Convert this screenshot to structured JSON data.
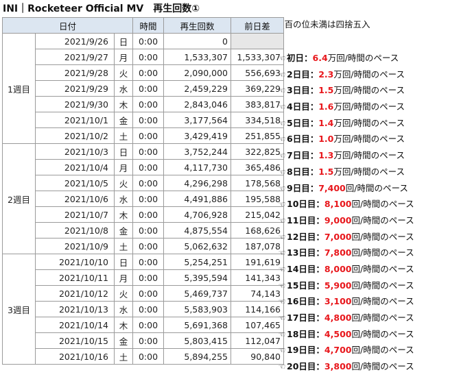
{
  "title": "INI｜Rocketeer Official MV　再生回数①",
  "note": "※百の位未満は四捨五入",
  "headers": {
    "date": "日付",
    "time": "時間",
    "views": "再生回数",
    "diff": "前日差"
  },
  "weeks": [
    {
      "label": "1週目",
      "rows": [
        {
          "date": "2021/9/26",
          "day": "日",
          "time": "0:00",
          "views": "0",
          "diff": ""
        },
        {
          "date": "2021/9/27",
          "day": "月",
          "time": "0:00",
          "views": "1,533,307",
          "diff": "1,533,307"
        },
        {
          "date": "2021/9/28",
          "day": "火",
          "time": "0:00",
          "views": "2,090,000",
          "diff": "556,693"
        },
        {
          "date": "2021/9/29",
          "day": "水",
          "time": "0:00",
          "views": "2,459,229",
          "diff": "369,229"
        },
        {
          "date": "2021/9/30",
          "day": "木",
          "time": "0:00",
          "views": "2,843,046",
          "diff": "383,817"
        },
        {
          "date": "2021/10/1",
          "day": "金",
          "time": "0:00",
          "views": "3,177,564",
          "diff": "334,518"
        },
        {
          "date": "2021/10/2",
          "day": "土",
          "time": "0:00",
          "views": "3,429,419",
          "diff": "251,855"
        }
      ]
    },
    {
      "label": "2週目",
      "rows": [
        {
          "date": "2021/10/3",
          "day": "日",
          "time": "0:00",
          "views": "3,752,244",
          "diff": "322,825"
        },
        {
          "date": "2021/10/4",
          "day": "月",
          "time": "0:00",
          "views": "4,117,730",
          "diff": "365,486"
        },
        {
          "date": "2021/10/5",
          "day": "火",
          "time": "0:00",
          "views": "4,296,298",
          "diff": "178,568"
        },
        {
          "date": "2021/10/6",
          "day": "水",
          "time": "0:00",
          "views": "4,491,886",
          "diff": "195,588"
        },
        {
          "date": "2021/10/7",
          "day": "木",
          "time": "0:00",
          "views": "4,706,928",
          "diff": "215,042"
        },
        {
          "date": "2021/10/8",
          "day": "金",
          "time": "0:00",
          "views": "4,875,554",
          "diff": "168,626"
        },
        {
          "date": "2021/10/9",
          "day": "土",
          "time": "0:00",
          "views": "5,062,632",
          "diff": "187,078"
        }
      ]
    },
    {
      "label": "3週目",
      "rows": [
        {
          "date": "2021/10/10",
          "day": "日",
          "time": "0:00",
          "views": "5,254,251",
          "diff": "191,619"
        },
        {
          "date": "2021/10/11",
          "day": "月",
          "time": "0:00",
          "views": "5,395,594",
          "diff": "141,343"
        },
        {
          "date": "2021/10/12",
          "day": "火",
          "time": "0:00",
          "views": "5,469,737",
          "diff": "74,143"
        },
        {
          "date": "2021/10/13",
          "day": "水",
          "time": "0:00",
          "views": "5,583,903",
          "diff": "114,166"
        },
        {
          "date": "2021/10/14",
          "day": "木",
          "time": "0:00",
          "views": "5,691,368",
          "diff": "107,465"
        },
        {
          "date": "2021/10/15",
          "day": "金",
          "time": "0:00",
          "views": "5,803,415",
          "diff": "112,047"
        },
        {
          "date": "2021/10/16",
          "day": "土",
          "time": "0:00",
          "views": "5,894,255",
          "diff": "90,840"
        }
      ]
    }
  ],
  "pace_notes": [
    {
      "day_label": "初日",
      "rate": "6.4",
      "unit": "万回",
      "suffix": "/時間のペース"
    },
    {
      "day_label": "2日目",
      "rate": "2.3",
      "unit": "万回",
      "suffix": "/時間のペース"
    },
    {
      "day_label": "3日目",
      "rate": "1.5",
      "unit": "万回",
      "suffix": "/時間のペース"
    },
    {
      "day_label": "4日目",
      "rate": "1.6",
      "unit": "万回",
      "suffix": "/時間のペース"
    },
    {
      "day_label": "5日目",
      "rate": "1.4",
      "unit": "万回",
      "suffix": "/時間のペース"
    },
    {
      "day_label": "6日目",
      "rate": "1.0",
      "unit": "万回",
      "suffix": "/時間のペース"
    },
    {
      "day_label": "7日目",
      "rate": "1.3",
      "unit": "万回",
      "suffix": "/時間のペース"
    },
    {
      "day_label": "8日目",
      "rate": "1.5",
      "unit": "万回",
      "suffix": "/時間のペース"
    },
    {
      "day_label": "9日目",
      "rate": "7,400",
      "unit": "回",
      "suffix": "/時間のペース"
    },
    {
      "day_label": "10日目",
      "rate": "8,100",
      "unit": "回",
      "suffix": "/時間のペース"
    },
    {
      "day_label": "11日目",
      "rate": "9,000",
      "unit": "回",
      "suffix": "/時間のペース"
    },
    {
      "day_label": "12日目",
      "rate": "7,000",
      "unit": "回",
      "suffix": "/時間のペース"
    },
    {
      "day_label": "13日目",
      "rate": "7,800",
      "unit": "回",
      "suffix": "/時間のペース"
    },
    {
      "day_label": "14日目",
      "rate": "8,000",
      "unit": "回",
      "suffix": "/時間のペース"
    },
    {
      "day_label": "15日目",
      "rate": "5,900",
      "unit": "回",
      "suffix": "/時間のペース"
    },
    {
      "day_label": "16日目",
      "rate": "3,100",
      "unit": "回",
      "suffix": "/時間のペース"
    },
    {
      "day_label": "17日目",
      "rate": "4,800",
      "unit": "回",
      "suffix": "/時間のペース"
    },
    {
      "day_label": "18日目",
      "rate": "4,500",
      "unit": "回",
      "suffix": "/時間のペース"
    },
    {
      "day_label": "19日目",
      "rate": "4,700",
      "unit": "回",
      "suffix": "/時間のペース"
    },
    {
      "day_label": "20日目",
      "rate": "3,800",
      "unit": "回",
      "suffix": "/時間のペース"
    }
  ],
  "icons": {
    "pointer": "pointing-hand-icon"
  },
  "colors": {
    "header_bg": "#dce6f1",
    "highlight": "#e8161b",
    "blank_cell": "#e7e7e7"
  }
}
